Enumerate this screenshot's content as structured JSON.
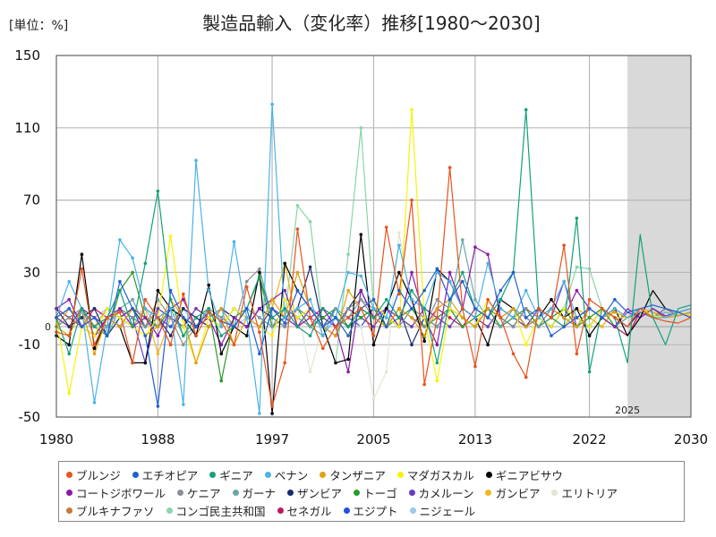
{
  "chart_data": {
    "type": "line",
    "title": "製造品輸入（変化率）推移[1980～2030]",
    "unit_label": "[単位：%]",
    "x_ticks": [
      "1980",
      "1988",
      "1997",
      "2005",
      "2013",
      "2022",
      "2030"
    ],
    "y_ticks": [
      "150",
      "110",
      "70",
      "30",
      "-10",
      "-50"
    ],
    "zero_label": "0",
    "xlim": [
      1980,
      2030
    ],
    "ylim": [
      -50,
      150
    ],
    "forecast_start": 2025,
    "forecast_label": "2025",
    "grid": true,
    "legend_position": "bottom",
    "series": [
      {
        "name": "ブルンジ",
        "color": "#e8531c",
        "values": [
          -3,
          -5,
          32,
          -10,
          5,
          8,
          -20,
          15,
          5,
          -10,
          18,
          -5,
          8,
          3,
          -10,
          22,
          -3,
          -44,
          -20,
          54,
          5,
          -12,
          0,
          5,
          10,
          -5,
          55,
          18,
          70,
          -32,
          5,
          88,
          10,
          -22,
          15,
          5,
          -15,
          -28,
          10,
          5,
          45,
          -15,
          15,
          10,
          5,
          0,
          10,
          5,
          3,
          2,
          5
        ]
      },
      {
        "name": "エチオピア",
        "color": "#1f5fd6",
        "values": [
          5,
          10,
          0,
          5,
          -5,
          25,
          10,
          -5,
          -44,
          20,
          5,
          0,
          8,
          3,
          0,
          10,
          -15,
          10,
          2,
          20,
          10,
          0,
          5,
          -5,
          10,
          15,
          0,
          20,
          10,
          20,
          32,
          15,
          25,
          10,
          5,
          20,
          30,
          5,
          10,
          -5,
          0,
          5,
          10,
          5,
          15,
          8,
          10,
          12,
          10,
          8,
          5
        ]
      },
      {
        "name": "ギニア",
        "color": "#13a07a",
        "values": [
          5,
          -15,
          10,
          0,
          5,
          20,
          0,
          35,
          75,
          15,
          -5,
          5,
          10,
          -5,
          0,
          10,
          28,
          5,
          10,
          0,
          -5,
          10,
          5,
          0,
          10,
          5,
          15,
          5,
          20,
          10,
          -20,
          15,
          30,
          10,
          5,
          15,
          30,
          120,
          10,
          5,
          0,
          60,
          -25,
          10,
          5,
          -20,
          51,
          5,
          -10,
          10,
          12
        ]
      },
      {
        "name": "ベナン",
        "color": "#4ab3e8",
        "values": [
          5,
          25,
          10,
          -42,
          0,
          48,
          38,
          10,
          5,
          10,
          -43,
          92,
          20,
          0,
          47,
          5,
          -48,
          123,
          5,
          10,
          15,
          -5,
          5,
          30,
          28,
          10,
          5,
          45,
          15,
          10,
          30,
          25,
          10,
          5,
          35,
          10,
          5,
          20,
          5,
          10,
          25,
          5,
          10,
          5,
          10,
          5,
          10,
          5,
          5,
          8,
          10
        ]
      },
      {
        "name": "タンザニア",
        "color": "#e0a010",
        "values": [
          0,
          -5,
          10,
          -15,
          5,
          0,
          10,
          -5,
          0,
          15,
          5,
          -20,
          0,
          10,
          -10,
          5,
          0,
          15,
          5,
          30,
          10,
          0,
          -5,
          20,
          10,
          5,
          0,
          10,
          5,
          -5,
          10,
          15,
          5,
          0,
          10,
          5,
          10,
          0,
          5,
          10,
          5,
          0,
          10,
          5,
          8,
          5,
          10,
          8,
          5,
          6,
          8
        ]
      },
      {
        "name": "マダガスカル",
        "color": "#f4f40a",
        "values": [
          5,
          -37,
          0,
          -5,
          10,
          5,
          0,
          -5,
          5,
          50,
          0,
          -20,
          5,
          0,
          10,
          5,
          0,
          -5,
          15,
          5,
          10,
          0,
          5,
          -5,
          10,
          15,
          5,
          0,
          120,
          5,
          -30,
          10,
          5,
          0,
          15,
          5,
          10,
          -10,
          5,
          0,
          10,
          5,
          0,
          10,
          5,
          5,
          10,
          6,
          5,
          8,
          6
        ]
      },
      {
        "name": "ギニアビサウ",
        "color": "#000000",
        "values": [
          -5,
          -10,
          40,
          -12,
          5,
          0,
          -20,
          -20,
          20,
          10,
          5,
          -5,
          23,
          -15,
          0,
          -5,
          30,
          -48,
          35,
          20,
          10,
          0,
          -20,
          -18,
          51,
          -10,
          10,
          30,
          15,
          -8,
          32,
          25,
          10,
          5,
          -10,
          15,
          10,
          0,
          5,
          15,
          5,
          10,
          -5,
          5,
          10,
          -5,
          5,
          20,
          10,
          8,
          10
        ]
      },
      {
        "name": "コートジボワール",
        "color": "#8a1aa8",
        "values": [
          10,
          15,
          0,
          -5,
          5,
          10,
          0,
          5,
          -5,
          10,
          15,
          0,
          5,
          -10,
          5,
          0,
          10,
          15,
          20,
          0,
          5,
          10,
          0,
          -25,
          20,
          5,
          10,
          0,
          30,
          5,
          -10,
          30,
          10,
          44,
          40,
          5,
          10,
          0,
          5,
          10,
          5,
          20,
          10,
          5,
          0,
          10,
          5,
          10,
          5,
          8,
          6
        ]
      },
      {
        "name": "ケニア",
        "color": "#8a8f96",
        "values": [
          0,
          5,
          10,
          -5,
          0,
          10,
          5,
          0,
          15,
          5,
          -10,
          0,
          5,
          10,
          0,
          25,
          32,
          5,
          0,
          10,
          5,
          0,
          -5,
          10,
          15,
          5,
          0,
          10,
          5,
          0,
          15,
          10,
          5,
          0,
          10,
          5,
          0,
          10,
          5,
          0,
          10,
          5,
          0,
          10,
          5,
          5,
          8,
          5,
          10,
          6,
          8
        ]
      },
      {
        "name": "ガーナ",
        "color": "#6aa8a8",
        "values": [
          5,
          10,
          0,
          5,
          -5,
          10,
          15,
          0,
          5,
          10,
          -5,
          0,
          10,
          5,
          0,
          10,
          5,
          0,
          10,
          5,
          0,
          -5,
          10,
          5,
          15,
          10,
          5,
          0,
          10,
          5,
          0,
          10,
          48,
          15,
          5,
          0,
          10,
          5,
          0,
          10,
          5,
          0,
          10,
          5,
          0,
          5,
          10,
          5,
          8,
          6,
          8
        ]
      },
      {
        "name": "ザンビア",
        "color": "#1a2a6e",
        "values": [
          10,
          0,
          5,
          10,
          -5,
          5,
          10,
          0,
          5,
          -5,
          10,
          5,
          0,
          10,
          5,
          0,
          10,
          5,
          0,
          10,
          33,
          0,
          -5,
          10,
          20,
          5,
          0,
          10,
          -10,
          5,
          0,
          10,
          5,
          0,
          10,
          5,
          0,
          10,
          5,
          0,
          10,
          5,
          0,
          10,
          5,
          0,
          8,
          5,
          10,
          6,
          8
        ]
      },
      {
        "name": "トーゴ",
        "color": "#2a9a2a",
        "values": [
          0,
          5,
          10,
          0,
          -5,
          20,
          30,
          5,
          0,
          10,
          5,
          0,
          10,
          -30,
          5,
          10,
          27,
          0,
          5,
          10,
          0,
          5,
          10,
          0,
          5,
          10,
          0,
          5,
          10,
          0,
          5,
          10,
          0,
          5,
          10,
          0,
          5,
          10,
          0,
          5,
          10,
          0,
          5,
          10,
          0,
          5,
          8,
          5,
          10,
          6,
          8
        ]
      },
      {
        "name": "カメルーン",
        "color": "#6a3ac8",
        "values": [
          5,
          0,
          10,
          5,
          0,
          10,
          5,
          -20,
          10,
          5,
          0,
          10,
          5,
          0,
          10,
          5,
          0,
          10,
          5,
          0,
          10,
          5,
          0,
          10,
          5,
          0,
          10,
          5,
          0,
          10,
          5,
          0,
          10,
          5,
          0,
          10,
          5,
          0,
          10,
          5,
          25,
          0,
          10,
          5,
          0,
          8,
          5,
          10,
          6,
          8,
          5
        ]
      },
      {
        "name": "ガンビア",
        "color": "#f0b820",
        "values": [
          0,
          10,
          5,
          0,
          10,
          5,
          0,
          10,
          -15,
          5,
          0,
          10,
          5,
          0,
          10,
          5,
          0,
          10,
          35,
          0,
          10,
          5,
          0,
          10,
          5,
          0,
          10,
          5,
          0,
          10,
          5,
          0,
          10,
          5,
          0,
          10,
          5,
          0,
          10,
          5,
          0,
          10,
          5,
          0,
          10,
          5,
          8,
          5,
          10,
          6,
          8
        ]
      },
      {
        "name": "エリトリア",
        "color": "#e4e4d4",
        "values": [
          null,
          null,
          null,
          null,
          null,
          null,
          null,
          null,
          null,
          null,
          null,
          null,
          null,
          null,
          null,
          5,
          10,
          0,
          5,
          10,
          -25,
          0,
          5,
          10,
          0,
          -40,
          -25,
          52,
          10,
          0,
          5,
          10,
          0,
          5,
          10,
          0,
          5,
          10,
          0,
          5,
          10,
          0,
          5,
          10,
          0,
          5,
          8,
          5,
          10,
          6,
          8
        ]
      },
      {
        "name": "ブルキナファソ",
        "color": "#c87838",
        "values": [
          5,
          0,
          10,
          5,
          0,
          10,
          5,
          0,
          10,
          5,
          0,
          10,
          5,
          0,
          10,
          5,
          0,
          10,
          5,
          0,
          10,
          5,
          0,
          10,
          5,
          0,
          10,
          5,
          0,
          10,
          5,
          0,
          10,
          5,
          0,
          10,
          5,
          0,
          10,
          5,
          0,
          10,
          5,
          0,
          10,
          5,
          8,
          5,
          10,
          6,
          8
        ]
      },
      {
        "name": "コンゴ民主共和国",
        "color": "#8ad4a8",
        "values": [
          null,
          null,
          null,
          null,
          null,
          null,
          null,
          null,
          null,
          null,
          null,
          null,
          null,
          null,
          null,
          null,
          null,
          10,
          5,
          67,
          58,
          0,
          -20,
          40,
          110,
          10,
          5,
          0,
          10,
          5,
          0,
          10,
          5,
          0,
          10,
          5,
          0,
          10,
          5,
          0,
          10,
          33,
          32,
          10,
          5,
          0,
          8,
          5,
          10,
          6,
          8
        ]
      },
      {
        "name": "セネガル",
        "color": "#c01860",
        "values": [
          10,
          5,
          0,
          10,
          5,
          0,
          10,
          5,
          0,
          10,
          5,
          0,
          10,
          5,
          0,
          10,
          5,
          0,
          10,
          5,
          0,
          10,
          5,
          0,
          10,
          5,
          0,
          10,
          5,
          0,
          10,
          5,
          0,
          10,
          5,
          0,
          10,
          5,
          0,
          10,
          5,
          0,
          10,
          5,
          0,
          -5,
          8,
          5,
          10,
          6,
          8
        ]
      },
      {
        "name": "エジプト",
        "color": "#2450e0",
        "values": [
          0,
          10,
          5,
          0,
          10,
          5,
          0,
          10,
          5,
          0,
          10,
          5,
          0,
          10,
          5,
          0,
          10,
          5,
          0,
          10,
          5,
          0,
          10,
          5,
          0,
          10,
          5,
          0,
          10,
          5,
          0,
          10,
          5,
          0,
          10,
          5,
          0,
          10,
          5,
          0,
          10,
          5,
          0,
          10,
          5,
          0,
          8,
          5,
          10,
          6,
          8
        ]
      },
      {
        "name": "ニジェール",
        "color": "#9ccaf0",
        "values": [
          5,
          10,
          0,
          5,
          10,
          0,
          5,
          10,
          0,
          5,
          10,
          0,
          5,
          10,
          0,
          5,
          10,
          0,
          5,
          10,
          0,
          5,
          10,
          0,
          5,
          10,
          0,
          5,
          10,
          0,
          5,
          10,
          0,
          5,
          10,
          0,
          5,
          10,
          0,
          5,
          10,
          0,
          5,
          10,
          0,
          5,
          8,
          5,
          10,
          6,
          8
        ]
      }
    ]
  }
}
